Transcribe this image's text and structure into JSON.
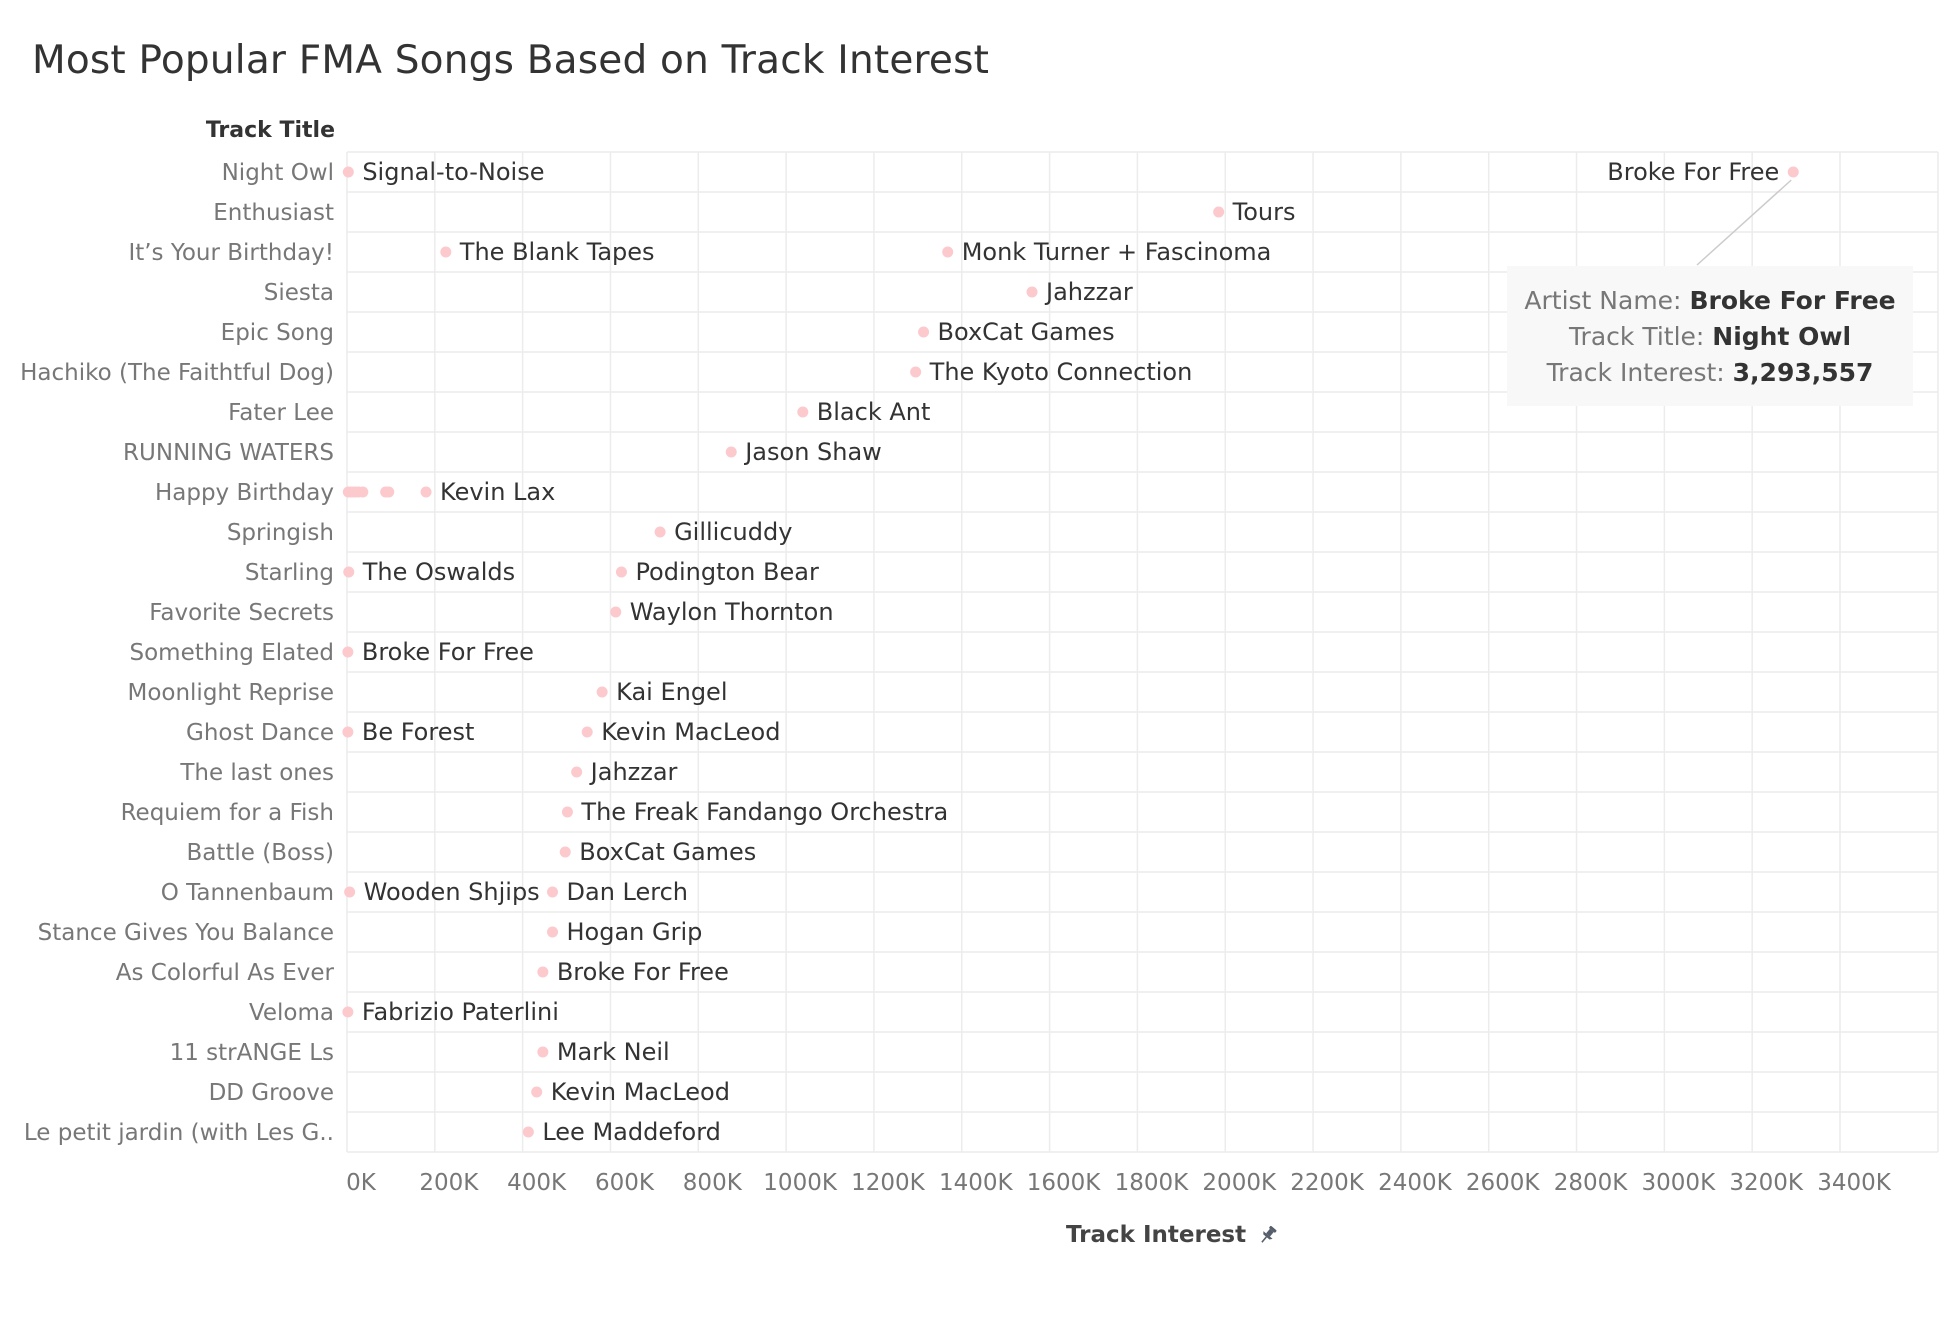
{
  "title": "Most Popular FMA Songs Based on Track Interest",
  "row_header": "Track Title",
  "axis_title": "Track Interest",
  "tooltip": {
    "artist_label": "Artist Name:",
    "artist_value": "Broke For Free",
    "track_label": "Track Title:",
    "track_value": "Night Owl",
    "interest_label": "Track Interest:",
    "interest_value": "3,293,557"
  },
  "colors": {
    "point": "#fcc9cd",
    "grid": "#ececec",
    "text": "#333333",
    "muted": "#777777"
  },
  "icons": {
    "axis_pin": "pin-icon"
  },
  "chart_data": {
    "type": "scatter",
    "title": "Most Popular FMA Songs Based on Track Interest",
    "xlabel": "Track Interest",
    "ylabel": "Track Title",
    "xlim": [
      0,
      3500000
    ],
    "xticks": [
      "0K",
      "200K",
      "400K",
      "600K",
      "800K",
      "1000K",
      "1200K",
      "1400K",
      "1600K",
      "1800K",
      "2000K",
      "2200K",
      "2400K",
      "2600K",
      "2800K",
      "3000K",
      "3200K",
      "3400K"
    ],
    "xtick_values": [
      0,
      200000,
      400000,
      600000,
      800000,
      1000000,
      1200000,
      1400000,
      1600000,
      1800000,
      2000000,
      2200000,
      2400000,
      2600000,
      2800000,
      3000000,
      3200000,
      3400000
    ],
    "grid": true,
    "categories": [
      "Night Owl",
      "Enthusiast",
      "It’s Your Birthday!",
      "Siesta",
      "Epic Song",
      "Hachiko (The Faithtful Dog)",
      "Fater Lee",
      "RUNNING WATERS",
      "Happy Birthday",
      "Springish",
      "Starling",
      "Favorite Secrets",
      "Something Elated",
      "Moonlight Reprise",
      "Ghost Dance",
      "The last ones",
      "Requiem for a Fish",
      "Battle (Boss)",
      "O Tannenbaum",
      "Stance Gives You Balance",
      "As Colorful As Ever",
      "Veloma",
      "11 strANGE Ls",
      "DD Groove",
      "Le petit jardin (with Les G.."
    ],
    "points": [
      {
        "track": "Night Owl",
        "artist": "Signal-to-Noise",
        "x": 3000
      },
      {
        "track": "Night Owl",
        "artist": "Broke For Free",
        "x": 3293557,
        "label_side": "left"
      },
      {
        "track": "Enthusiast",
        "artist": "Tours",
        "x": 1985000
      },
      {
        "track": "It’s Your Birthday!",
        "artist": "The Blank Tapes",
        "x": 225000
      },
      {
        "track": "It’s Your Birthday!",
        "artist": "Monk Turner + Fascinoma",
        "x": 1368000
      },
      {
        "track": "Siesta",
        "artist": "Jahzzar",
        "x": 1560000
      },
      {
        "track": "Epic Song",
        "artist": "BoxCat Games",
        "x": 1313000
      },
      {
        "track": "Hachiko (The Faithtful Dog)",
        "artist": "The Kyoto Connection",
        "x": 1295000
      },
      {
        "track": "Fater Lee",
        "artist": "Black Ant",
        "x": 1038000
      },
      {
        "track": "RUNNING WATERS",
        "artist": "Jason Shaw",
        "x": 875000
      },
      {
        "track": "Happy Birthday",
        "artist": "",
        "x": 3000
      },
      {
        "track": "Happy Birthday",
        "artist": "",
        "x": 10000
      },
      {
        "track": "Happy Birthday",
        "artist": "",
        "x": 18000
      },
      {
        "track": "Happy Birthday",
        "artist": "",
        "x": 26000
      },
      {
        "track": "Happy Birthday",
        "artist": "",
        "x": 36000
      },
      {
        "track": "Happy Birthday",
        "artist": "",
        "x": 88000
      },
      {
        "track": "Happy Birthday",
        "artist": "",
        "x": 95000
      },
      {
        "track": "Happy Birthday",
        "artist": "Kevin Lax",
        "x": 180000
      },
      {
        "track": "Springish",
        "artist": "Gillicuddy",
        "x": 713000
      },
      {
        "track": "Starling",
        "artist": "The Oswalds",
        "x": 4000
      },
      {
        "track": "Starling",
        "artist": "Podington Bear",
        "x": 625000
      },
      {
        "track": "Favorite Secrets",
        "artist": "Waylon Thornton",
        "x": 612000
      },
      {
        "track": "Something Elated",
        "artist": "Broke For Free",
        "x": 2000
      },
      {
        "track": "Moonlight Reprise",
        "artist": "Kai Engel",
        "x": 581000
      },
      {
        "track": "Ghost Dance",
        "artist": "Be Forest",
        "x": 2000
      },
      {
        "track": "Ghost Dance",
        "artist": "Kevin MacLeod",
        "x": 547000
      },
      {
        "track": "The last ones",
        "artist": "Jahzzar",
        "x": 523000
      },
      {
        "track": "Requiem for a Fish",
        "artist": "The Freak Fandango Orchestra",
        "x": 502000
      },
      {
        "track": "Battle (Boss)",
        "artist": "BoxCat Games",
        "x": 497000
      },
      {
        "track": "O Tannenbaum",
        "artist": "Wooden Shjips",
        "x": 6000
      },
      {
        "track": "O Tannenbaum",
        "artist": "Dan Lerch",
        "x": 468000
      },
      {
        "track": "Stance Gives You Balance",
        "artist": "Hogan Grip",
        "x": 468000
      },
      {
        "track": "As Colorful As Ever",
        "artist": "Broke For Free",
        "x": 446000
      },
      {
        "track": "Veloma",
        "artist": "Fabrizio Paterlini",
        "x": 2000
      },
      {
        "track": "11 strANGE Ls",
        "artist": "Mark Neil",
        "x": 446000
      },
      {
        "track": "DD Groove",
        "artist": "Kevin MacLeod",
        "x": 432000
      },
      {
        "track": "Le petit jardin (with Les G..",
        "artist": "Lee Maddeford",
        "x": 413000
      }
    ]
  }
}
